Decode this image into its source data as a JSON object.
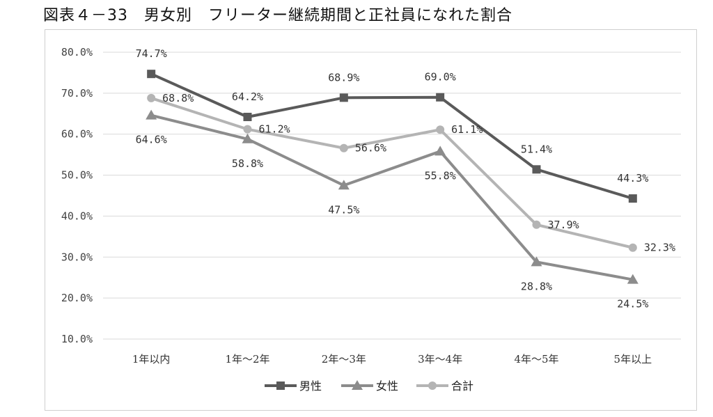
{
  "title": "図表４－33　男女別　フリーター継続期間と正社員になれた割合",
  "chart_data": {
    "type": "line",
    "categories": [
      "1年以内",
      "1年～2年",
      "2年～3年",
      "3年～4年",
      "4年～5年",
      "5年以上"
    ],
    "y_tick_labels": [
      "80.0%",
      "70.0%",
      "60.0%",
      "50.0%",
      "40.0%",
      "30.0%",
      "20.0%",
      "10.0%"
    ],
    "ylim": [
      10,
      80
    ],
    "y_unit": "%",
    "grid": true,
    "legend_position": "bottom",
    "series": [
      {
        "name": "男性",
        "marker": "square",
        "color": "#5a5a5a",
        "values": [
          74.7,
          64.2,
          68.9,
          69.0,
          51.4,
          44.3
        ],
        "labels": [
          "74.7%",
          "64.2%",
          "68.9%",
          "69.0%",
          "51.4%",
          "44.3%"
        ]
      },
      {
        "name": "女性",
        "marker": "triangle",
        "color": "#8c8c8c",
        "values": [
          64.6,
          58.8,
          47.5,
          55.8,
          28.8,
          24.5
        ],
        "labels": [
          "64.6%",
          "58.8%",
          "47.5%",
          "55.8%",
          "28.8%",
          "24.5%"
        ]
      },
      {
        "name": "合計",
        "marker": "circle",
        "color": "#b4b4b4",
        "values": [
          68.8,
          61.2,
          56.6,
          61.1,
          37.9,
          32.3
        ],
        "labels": [
          "68.8%",
          "61.2%",
          "56.6%",
          "61.1%",
          "37.9%",
          "32.3%"
        ]
      }
    ]
  }
}
